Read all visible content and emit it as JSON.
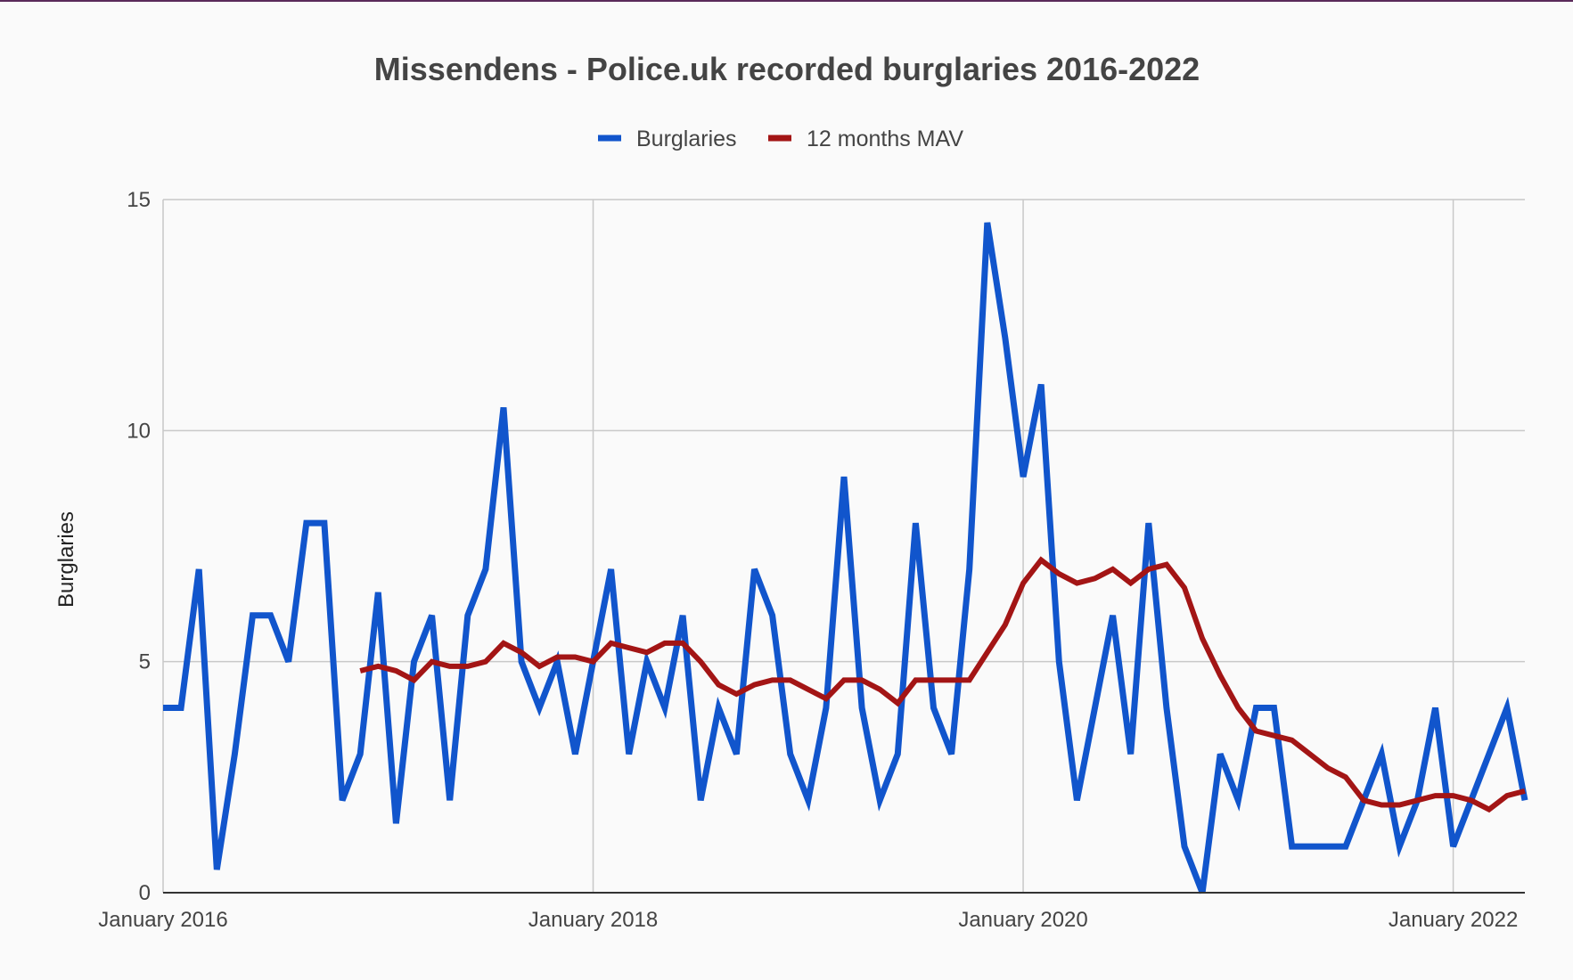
{
  "chart_data": {
    "type": "line",
    "title": "Missendens - Police.uk recorded burglaries 2016-2022",
    "ylabel": "Burglaries",
    "xlabel": "",
    "x_start": "January 2016",
    "x_interval": "month",
    "ylim": [
      0,
      15
    ],
    "yticks": [
      "0",
      "5",
      "10",
      "15"
    ],
    "xticks": [
      "January 2016",
      "January 2018",
      "January 2020",
      "January 2022"
    ],
    "grid": true,
    "legend_position": "top",
    "series": [
      {
        "name": "Burglaries",
        "color": "#1155cc",
        "values": [
          4,
          4,
          7,
          0.5,
          3,
          6,
          6,
          5,
          8,
          8,
          2,
          3,
          6.5,
          1.5,
          5,
          6,
          2,
          6,
          7,
          10.5,
          5,
          4,
          5,
          3,
          5,
          7,
          3,
          5,
          4,
          6,
          2,
          4,
          3,
          7,
          6,
          3,
          2,
          4,
          9,
          4,
          2,
          3,
          8,
          4,
          3,
          7,
          14.5,
          12,
          9,
          11,
          5,
          2,
          4,
          6,
          3,
          8,
          4,
          1,
          0,
          3,
          2,
          4,
          4,
          1,
          1,
          1,
          1,
          2,
          3,
          1,
          2,
          4,
          1,
          2,
          3,
          4,
          2
        ]
      },
      {
        "name": "12 months MAV",
        "color": "#a31515",
        "values": [
          null,
          null,
          null,
          null,
          null,
          null,
          null,
          null,
          null,
          null,
          null,
          4.8,
          4.9,
          4.8,
          4.6,
          5.0,
          4.9,
          4.9,
          5.0,
          5.4,
          5.2,
          4.9,
          5.1,
          5.1,
          5.0,
          5.4,
          5.3,
          5.2,
          5.4,
          5.4,
          5.0,
          4.5,
          4.3,
          4.5,
          4.6,
          4.6,
          4.4,
          4.2,
          4.6,
          4.6,
          4.4,
          4.1,
          4.6,
          4.6,
          4.6,
          4.6,
          5.2,
          5.8,
          6.7,
          7.2,
          6.9,
          6.7,
          6.8,
          7.0,
          6.7,
          7.0,
          7.1,
          6.6,
          5.5,
          4.7,
          4.0,
          3.5,
          3.4,
          3.3,
          3.0,
          2.7,
          2.5,
          2.0,
          1.9,
          1.9,
          2.0,
          2.1,
          2.1,
          2.0,
          1.8,
          2.1,
          2.2
        ]
      }
    ]
  }
}
